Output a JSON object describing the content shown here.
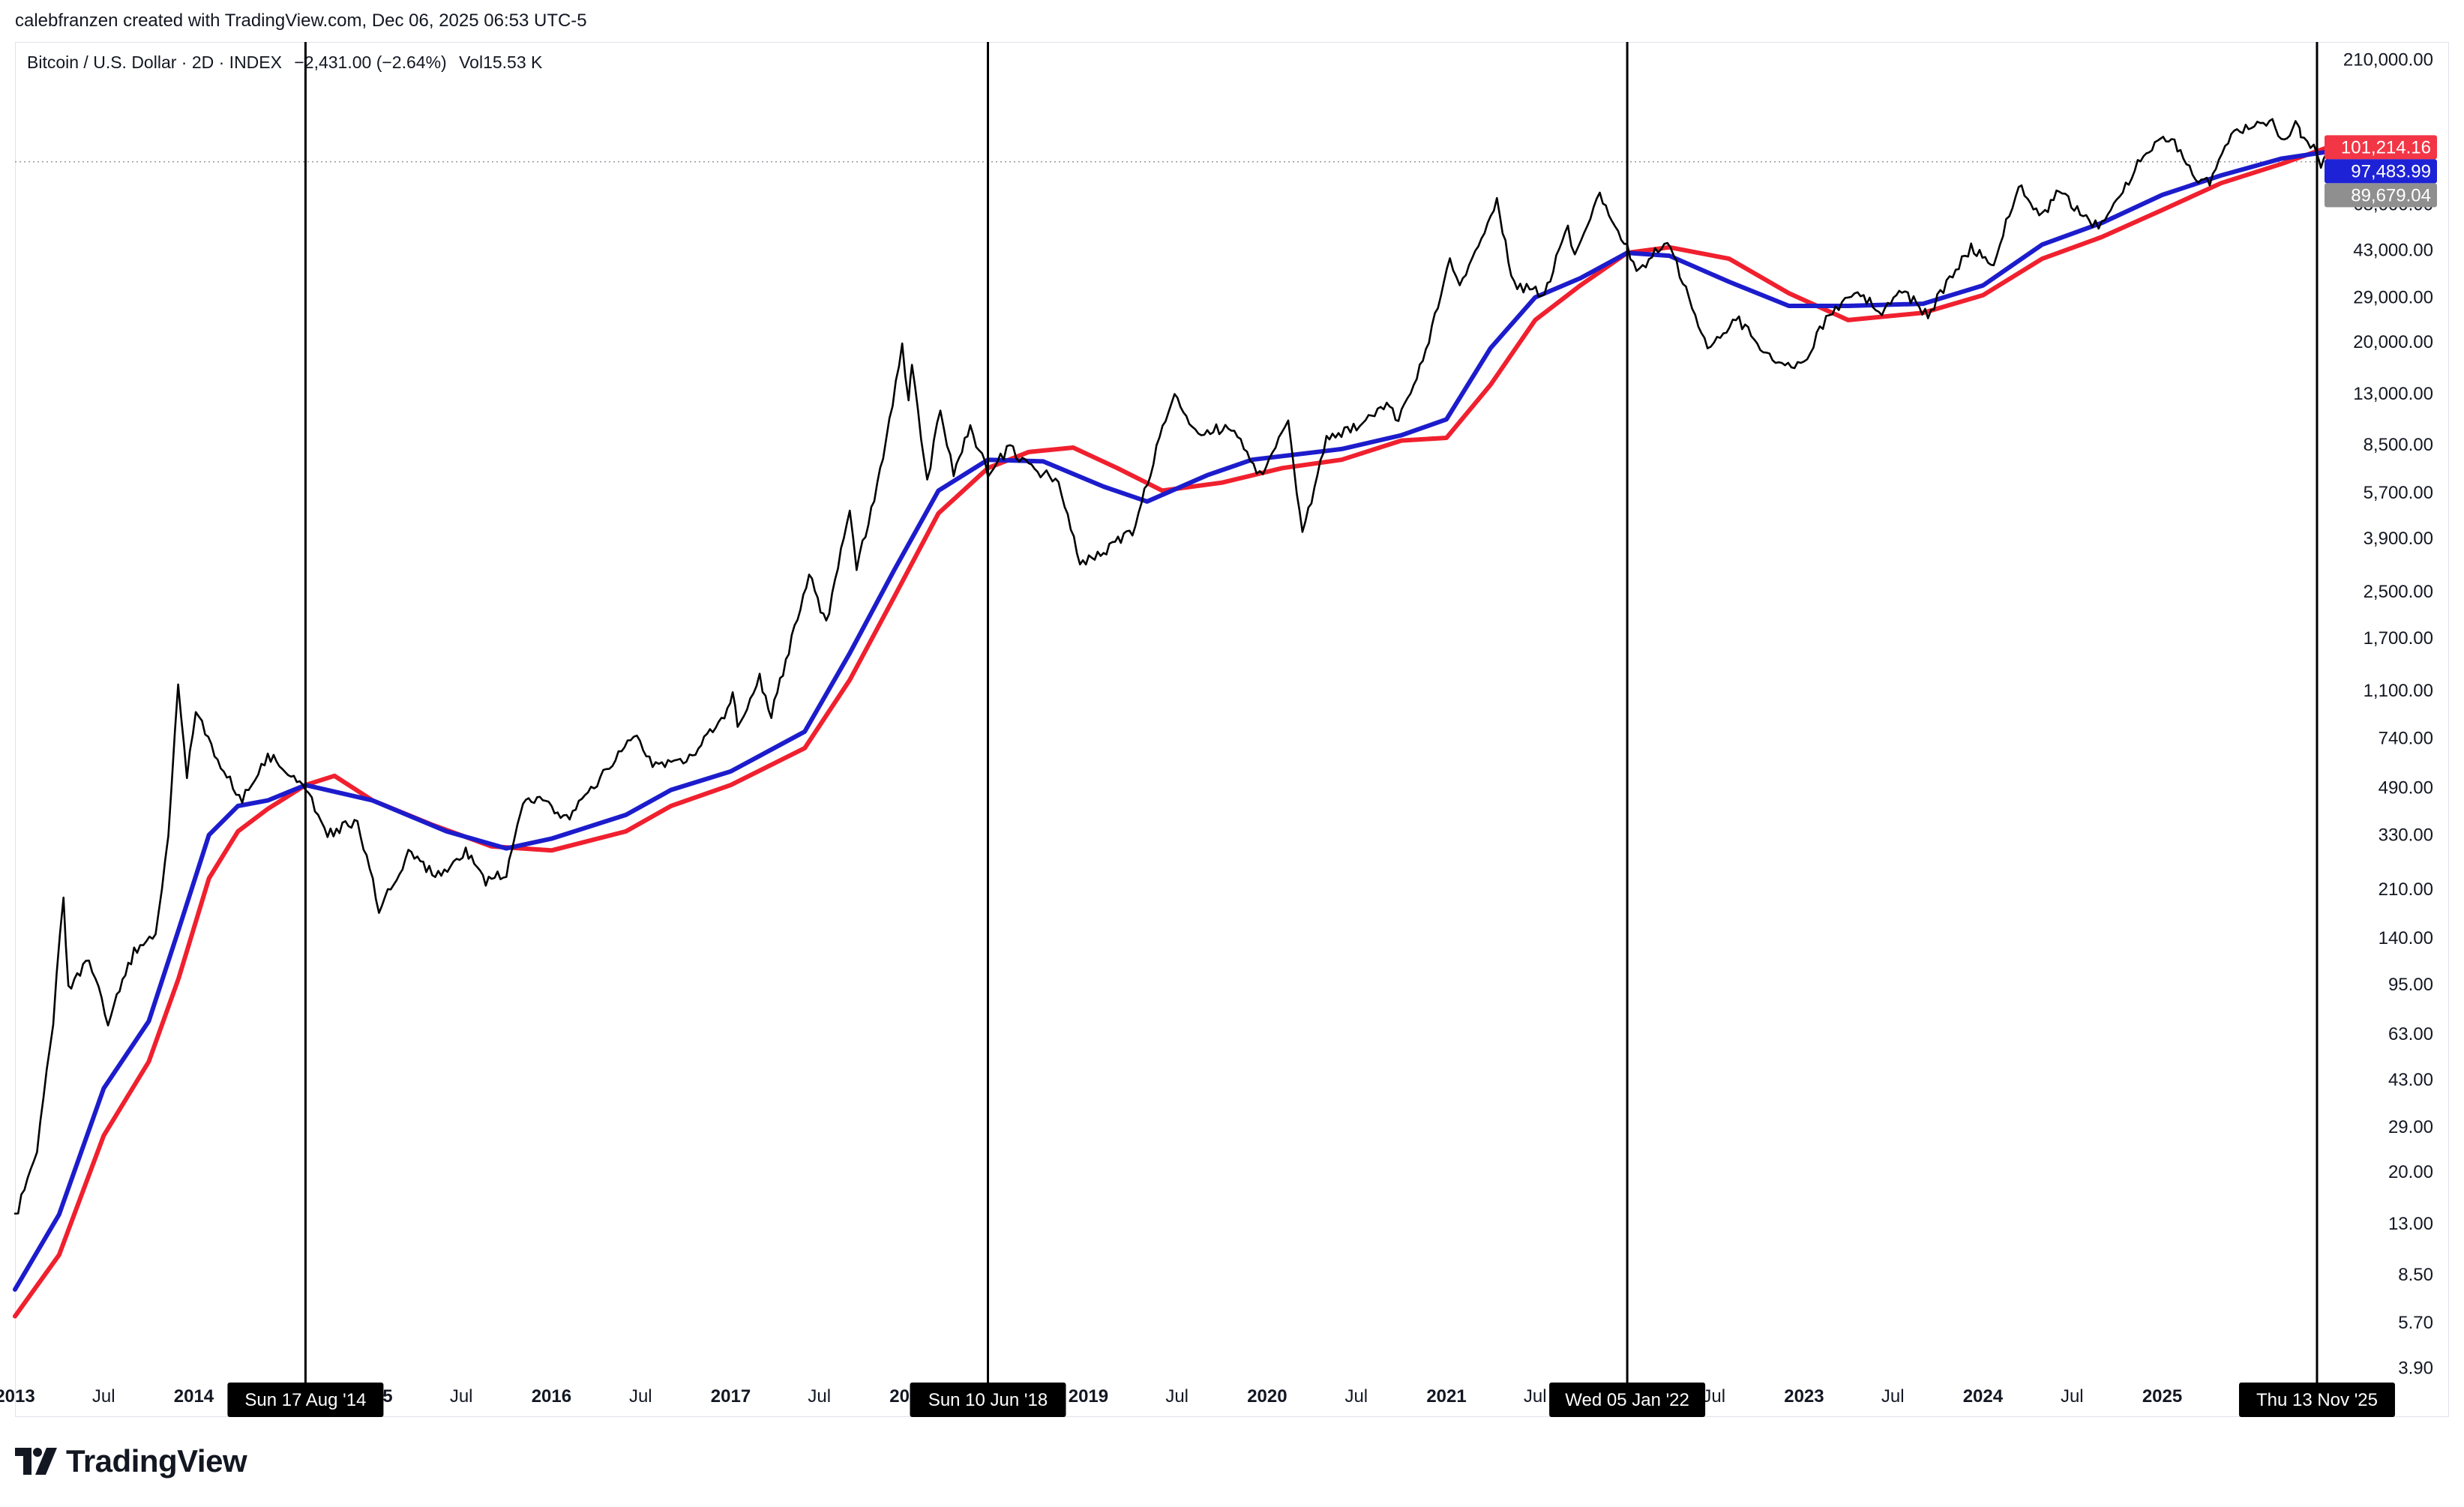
{
  "header": {
    "attribution": "calebfranzen created with TradingView.com, Dec 06, 2025 06:53 UTC-5"
  },
  "legend": {
    "symbol": "Bitcoin / U.S. Dollar · 2D · INDEX",
    "change": "−2,431.00 (−2.64%)",
    "volume_label": "Vol",
    "volume_value": "15.53 K"
  },
  "brand": {
    "name": "TradingView",
    "icon": "tradingview-logo-icon"
  },
  "colors": {
    "price": "#000000",
    "blue_line": "#1c1ccc",
    "red_line": "#f0202e",
    "red_badge": "#f23645",
    "blue_badge": "#1e22d6",
    "price_badge": "#8f8f8f",
    "marker_badge": "#000000"
  },
  "chart_data": {
    "type": "line",
    "scale": "log",
    "x_ticks": [
      "2013",
      "Jul",
      "2014",
      "Jul",
      "2015",
      "Jul",
      "2016",
      "Jul",
      "2017",
      "Jul",
      "2018",
      "Jul",
      "2019",
      "Jul",
      "2020",
      "Jul",
      "2021",
      "Jul",
      "2022",
      "Jul",
      "2023",
      "Jul",
      "2024",
      "Jul",
      "2025"
    ],
    "y_ticks": [
      "210,000.00",
      "63,000.00",
      "43,000.00",
      "29,000.00",
      "20,000.00",
      "13,000.00",
      "8,500.00",
      "5,700.00",
      "3,900.00",
      "2,500.00",
      "1,700.00",
      "1,100.00",
      "740.00",
      "490.00",
      "330.00",
      "210.00",
      "140.00",
      "95.00",
      "63.00",
      "43.00",
      "29.00",
      "20.00",
      "13.00",
      "8.50",
      "5.70",
      "3.90"
    ],
    "x_range": [
      "2013-01-01",
      "2025-12-06"
    ],
    "y_range": [
      3.5,
      240000
    ],
    "series": [
      {
        "key": "price",
        "points": [
          [
            "2013-01-01",
            13.5
          ],
          [
            "2013-02-15",
            24
          ],
          [
            "2013-03-20",
            70
          ],
          [
            "2013-04-10",
            200
          ],
          [
            "2013-04-20",
            90
          ],
          [
            "2013-06-01",
            120
          ],
          [
            "2013-07-10",
            70
          ],
          [
            "2013-09-01",
            125
          ],
          [
            "2013-10-15",
            145
          ],
          [
            "2013-11-10",
            320
          ],
          [
            "2013-11-30",
            1150
          ],
          [
            "2013-12-18",
            540
          ],
          [
            "2014-01-05",
            950
          ],
          [
            "2014-02-25",
            580
          ],
          [
            "2014-04-10",
            440
          ],
          [
            "2014-06-01",
            640
          ],
          [
            "2014-08-17",
            500
          ],
          [
            "2014-10-01",
            330
          ],
          [
            "2014-12-01",
            375
          ],
          [
            "2015-01-14",
            180
          ],
          [
            "2015-03-15",
            280
          ],
          [
            "2015-05-15",
            235
          ],
          [
            "2015-07-10",
            290
          ],
          [
            "2015-08-20",
            225
          ],
          [
            "2015-10-01",
            240
          ],
          [
            "2015-11-04",
            430
          ],
          [
            "2015-12-20",
            440
          ],
          [
            "2016-02-01",
            375
          ],
          [
            "2016-06-17",
            750
          ],
          [
            "2016-08-01",
            580
          ],
          [
            "2016-10-15",
            640
          ],
          [
            "2016-12-31",
            970
          ],
          [
            "2017-01-05",
            1130
          ],
          [
            "2017-01-15",
            780
          ],
          [
            "2017-03-01",
            1220
          ],
          [
            "2017-03-25",
            900
          ],
          [
            "2017-06-10",
            2900
          ],
          [
            "2017-07-15",
            1900
          ],
          [
            "2017-09-01",
            4900
          ],
          [
            "2017-09-15",
            3000
          ],
          [
            "2017-11-08",
            7500
          ],
          [
            "2017-12-17",
            19500
          ],
          [
            "2017-12-30",
            12500
          ],
          [
            "2018-01-06",
            17000
          ],
          [
            "2018-02-06",
            6200
          ],
          [
            "2018-03-05",
            11500
          ],
          [
            "2018-04-01",
            6700
          ],
          [
            "2018-05-05",
            9800
          ],
          [
            "2018-06-10",
            6700
          ],
          [
            "2018-07-25",
            8300
          ],
          [
            "2018-09-01",
            7000
          ],
          [
            "2018-11-01",
            6400
          ],
          [
            "2018-12-15",
            3200
          ],
          [
            "2019-02-01",
            3500
          ],
          [
            "2019-04-01",
            4100
          ],
          [
            "2019-06-26",
            13500
          ],
          [
            "2019-08-01",
            9500
          ],
          [
            "2019-10-26",
            9800
          ],
          [
            "2019-12-17",
            6600
          ],
          [
            "2020-02-13",
            10300
          ],
          [
            "2020-03-13",
            4000
          ],
          [
            "2020-05-01",
            8800
          ],
          [
            "2020-07-26",
            10500
          ],
          [
            "2020-09-01",
            11900
          ],
          [
            "2020-09-25",
            10300
          ],
          [
            "2020-11-20",
            18500
          ],
          [
            "2021-01-08",
            41000
          ],
          [
            "2021-01-28",
            31000
          ],
          [
            "2021-04-14",
            64000
          ],
          [
            "2021-05-19",
            32000
          ],
          [
            "2021-06-20",
            31000
          ],
          [
            "2021-07-20",
            30000
          ],
          [
            "2021-09-06",
            52000
          ],
          [
            "2021-09-20",
            41000
          ],
          [
            "2021-11-10",
            68000
          ],
          [
            "2022-01-05",
            43500
          ],
          [
            "2022-01-24",
            35000
          ],
          [
            "2022-03-28",
            47500
          ],
          [
            "2022-06-18",
            18500
          ],
          [
            "2022-08-15",
            24500
          ],
          [
            "2022-11-10",
            16200
          ],
          [
            "2023-01-01",
            16600
          ],
          [
            "2023-02-15",
            24500
          ],
          [
            "2023-04-14",
            30500
          ],
          [
            "2023-06-15",
            25500
          ],
          [
            "2023-07-14",
            31500
          ],
          [
            "2023-09-11",
            25000
          ],
          [
            "2023-10-25",
            34000
          ],
          [
            "2023-12-08",
            44000
          ],
          [
            "2024-01-23",
            39000
          ],
          [
            "2024-03-14",
            73500
          ],
          [
            "2024-05-01",
            57000
          ],
          [
            "2024-06-05",
            71500
          ],
          [
            "2024-08-05",
            54000
          ],
          [
            "2024-09-06",
            53000
          ],
          [
            "2024-11-12",
            89000
          ],
          [
            "2024-12-17",
            106000
          ],
          [
            "2025-01-20",
            108000
          ],
          [
            "2025-03-10",
            78000
          ],
          [
            "2025-04-08",
            76500
          ],
          [
            "2025-05-22",
            111500
          ],
          [
            "2025-07-14",
            122000
          ],
          [
            "2025-08-14",
            124000
          ],
          [
            "2025-09-01",
            108000
          ],
          [
            "2025-10-06",
            125000
          ],
          [
            "2025-10-11",
            110000
          ],
          [
            "2025-11-13",
            99000
          ],
          [
            "2025-11-21",
            84000
          ],
          [
            "2025-12-03",
            93500
          ],
          [
            "2025-12-06",
            89679
          ]
        ]
      },
      {
        "key": "blue",
        "points": [
          [
            "2013-01-01",
            7.5
          ],
          [
            "2013-04-01",
            14
          ],
          [
            "2013-07-01",
            40
          ],
          [
            "2013-10-01",
            70
          ],
          [
            "2013-12-01",
            150
          ],
          [
            "2014-02-01",
            330
          ],
          [
            "2014-04-01",
            420
          ],
          [
            "2014-06-01",
            440
          ],
          [
            "2014-08-17",
            500
          ],
          [
            "2015-01-01",
            440
          ],
          [
            "2015-06-01",
            340
          ],
          [
            "2015-10-01",
            295
          ],
          [
            "2016-01-01",
            320
          ],
          [
            "2016-06-01",
            390
          ],
          [
            "2016-09-01",
            480
          ],
          [
            "2017-01-01",
            560
          ],
          [
            "2017-06-01",
            780
          ],
          [
            "2017-09-01",
            1500
          ],
          [
            "2017-12-01",
            3000
          ],
          [
            "2018-03-01",
            5800
          ],
          [
            "2018-06-10",
            7500
          ],
          [
            "2018-10-01",
            7400
          ],
          [
            "2019-02-01",
            6000
          ],
          [
            "2019-05-01",
            5300
          ],
          [
            "2019-09-01",
            6600
          ],
          [
            "2019-12-01",
            7500
          ],
          [
            "2020-06-01",
            8200
          ],
          [
            "2020-10-01",
            9200
          ],
          [
            "2021-01-01",
            10500
          ],
          [
            "2021-04-01",
            19000
          ],
          [
            "2021-07-01",
            29000
          ],
          [
            "2021-10-01",
            34000
          ],
          [
            "2022-01-05",
            42000
          ],
          [
            "2022-04-01",
            41000
          ],
          [
            "2022-08-01",
            33000
          ],
          [
            "2022-12-01",
            27000
          ],
          [
            "2023-04-01",
            27000
          ],
          [
            "2023-09-01",
            27500
          ],
          [
            "2024-01-01",
            32000
          ],
          [
            "2024-05-01",
            45000
          ],
          [
            "2024-09-01",
            54000
          ],
          [
            "2025-01-01",
            68000
          ],
          [
            "2025-05-01",
            80000
          ],
          [
            "2025-09-01",
            92000
          ],
          [
            "2025-12-06",
            97484
          ]
        ]
      },
      {
        "key": "red",
        "points": [
          [
            "2013-01-01",
            6.0
          ],
          [
            "2013-04-01",
            10
          ],
          [
            "2013-07-01",
            27
          ],
          [
            "2013-10-01",
            50
          ],
          [
            "2013-12-01",
            100
          ],
          [
            "2014-02-01",
            230
          ],
          [
            "2014-04-01",
            340
          ],
          [
            "2014-06-01",
            410
          ],
          [
            "2014-08-17",
            500
          ],
          [
            "2014-10-15",
            540
          ],
          [
            "2015-01-01",
            440
          ],
          [
            "2015-05-01",
            360
          ],
          [
            "2015-09-01",
            300
          ],
          [
            "2016-01-01",
            290
          ],
          [
            "2016-06-01",
            340
          ],
          [
            "2016-09-01",
            420
          ],
          [
            "2017-01-01",
            500
          ],
          [
            "2017-06-01",
            680
          ],
          [
            "2017-09-01",
            1200
          ],
          [
            "2017-12-01",
            2400
          ],
          [
            "2018-03-01",
            4800
          ],
          [
            "2018-06-10",
            7000
          ],
          [
            "2018-09-01",
            8000
          ],
          [
            "2018-12-01",
            8300
          ],
          [
            "2019-03-01",
            7000
          ],
          [
            "2019-06-01",
            5800
          ],
          [
            "2019-10-01",
            6200
          ],
          [
            "2020-02-01",
            7000
          ],
          [
            "2020-06-01",
            7500
          ],
          [
            "2020-10-01",
            8800
          ],
          [
            "2021-01-01",
            9000
          ],
          [
            "2021-04-01",
            14000
          ],
          [
            "2021-07-01",
            24000
          ],
          [
            "2021-10-01",
            32000
          ],
          [
            "2022-01-05",
            42000
          ],
          [
            "2022-04-01",
            44000
          ],
          [
            "2022-08-01",
            40000
          ],
          [
            "2022-12-01",
            30000
          ],
          [
            "2023-04-01",
            24000
          ],
          [
            "2023-09-01",
            25500
          ],
          [
            "2024-01-01",
            29500
          ],
          [
            "2024-05-01",
            40000
          ],
          [
            "2024-09-01",
            48000
          ],
          [
            "2025-01-01",
            60000
          ],
          [
            "2025-05-01",
            75000
          ],
          [
            "2025-09-01",
            88000
          ],
          [
            "2025-12-06",
            101214
          ]
        ]
      }
    ],
    "vertical_markers": [
      {
        "date": "2014-08-17",
        "label": "Sun 17 Aug '14"
      },
      {
        "date": "2018-06-10",
        "label": "Sun 10 Jun '18"
      },
      {
        "date": "2022-01-05",
        "label": "Wed 05 Jan '22"
      },
      {
        "date": "2025-11-13",
        "label": "Thu 13 Nov '25"
      }
    ],
    "price_badges": [
      {
        "value": 101214.16,
        "text": "101,214.16",
        "color_key": "red_badge"
      },
      {
        "value": 97483.99,
        "text": "97,483.99",
        "color_key": "blue_badge"
      },
      {
        "value": 89679.04,
        "text": "89,679.04",
        "color_key": "price_badge"
      }
    ],
    "current_price_line": 89679.04
  }
}
